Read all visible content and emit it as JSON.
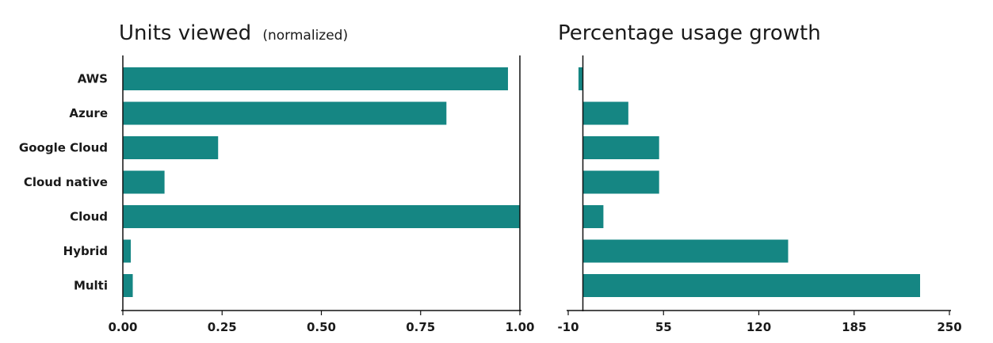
{
  "colors": {
    "bar": "#158683",
    "axis": "#111111",
    "text": "#1a1a1a"
  },
  "chart_data": [
    {
      "type": "bar",
      "orientation": "horizontal",
      "title": "Units viewed",
      "subtitle": "(normalized)",
      "categories": [
        "AWS",
        "Azure",
        "Google Cloud",
        "Cloud native",
        "Cloud",
        "Hybrid",
        "Multi"
      ],
      "values": [
        0.97,
        0.815,
        0.24,
        0.105,
        1.0,
        0.02,
        0.025
      ],
      "xlim": [
        0,
        1
      ],
      "xticks": [
        0,
        0.25,
        0.5,
        0.75,
        1.0
      ],
      "xtick_labels": [
        "0.00",
        "0.25",
        "0.50",
        "0.75",
        "1.00"
      ],
      "grid": false
    },
    {
      "type": "bar",
      "orientation": "horizontal",
      "title": "Percentage usage growth",
      "categories": [
        "AWS",
        "Azure",
        "Google Cloud",
        "Cloud native",
        "Cloud",
        "Hybrid",
        "Multi"
      ],
      "values": [
        -3,
        31,
        52,
        52,
        14,
        140,
        230
      ],
      "xlim": [
        -10,
        250
      ],
      "xticks": [
        -10,
        55,
        120,
        185,
        250
      ],
      "xtick_labels": [
        "-10",
        "55",
        "120",
        "185",
        "250"
      ],
      "grid": false
    }
  ]
}
